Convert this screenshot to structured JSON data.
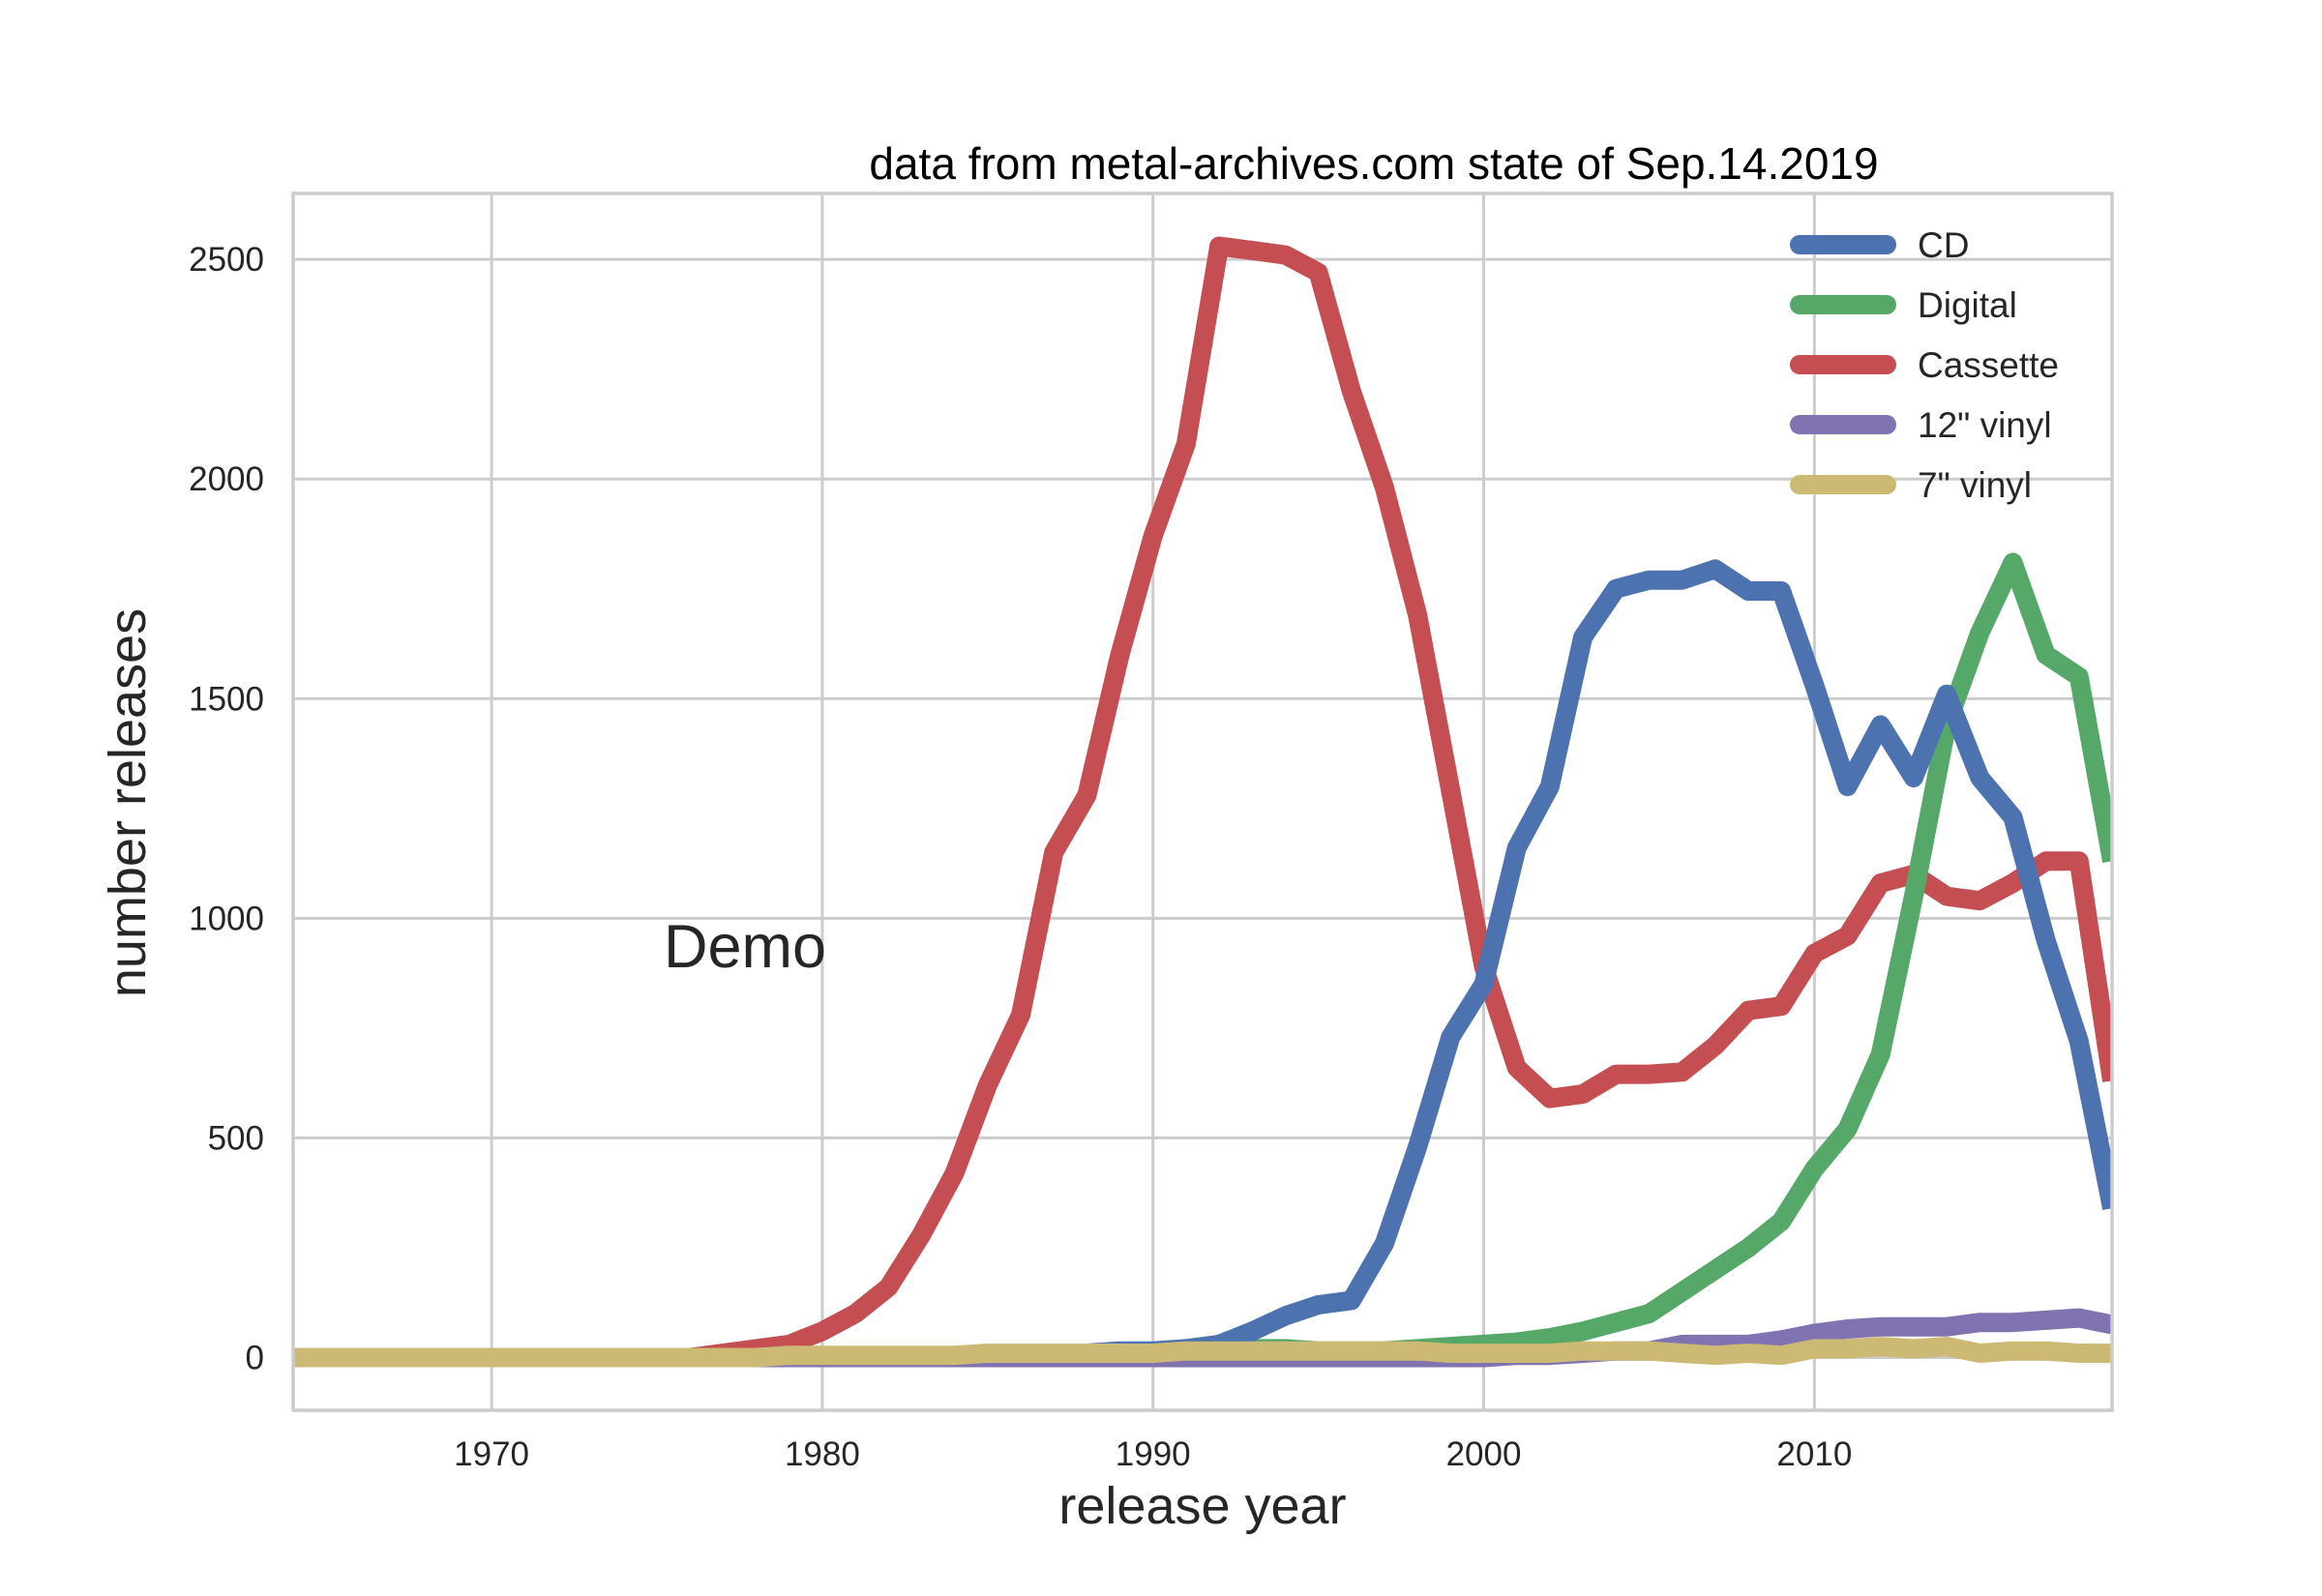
{
  "chart_data": {
    "type": "line",
    "title": "data from metal-archives.com state of Sep.14.2019",
    "xlabel": "release year",
    "ylabel": "number releases",
    "annotation": "Demo",
    "xlim": [
      1964,
      2019
    ],
    "ylim": [
      -120,
      2650
    ],
    "x_ticks": [
      1970,
      1980,
      1990,
      2000,
      2010
    ],
    "y_ticks": [
      0,
      500,
      1000,
      1500,
      2000,
      2500
    ],
    "grid": true,
    "legend_position": "top-right",
    "x": [
      1964,
      1965,
      1966,
      1967,
      1968,
      1969,
      1970,
      1971,
      1972,
      1973,
      1974,
      1975,
      1976,
      1977,
      1978,
      1979,
      1980,
      1981,
      1982,
      1983,
      1984,
      1985,
      1986,
      1987,
      1988,
      1989,
      1990,
      1991,
      1992,
      1993,
      1994,
      1995,
      1996,
      1997,
      1998,
      1999,
      2000,
      2001,
      2002,
      2003,
      2004,
      2005,
      2006,
      2007,
      2008,
      2009,
      2010,
      2011,
      2012,
      2013,
      2014,
      2015,
      2016,
      2017,
      2018,
      2019
    ],
    "series": [
      {
        "name": "CD",
        "color": "#4c72b0",
        "values": [
          0,
          0,
          0,
          0,
          0,
          0,
          0,
          0,
          0,
          0,
          0,
          0,
          0,
          0,
          0,
          0,
          0,
          0,
          0,
          0,
          0,
          5,
          5,
          10,
          10,
          15,
          15,
          20,
          30,
          60,
          95,
          120,
          130,
          260,
          480,
          730,
          850,
          1160,
          1300,
          1640,
          1750,
          1770,
          1770,
          1795,
          1745,
          1745,
          1530,
          1300,
          1440,
          1320,
          1510,
          1320,
          1230,
          950,
          720,
          340
        ]
      },
      {
        "name": "Digital",
        "color": "#55a868",
        "values": [
          0,
          0,
          0,
          0,
          0,
          0,
          0,
          0,
          0,
          0,
          0,
          0,
          0,
          0,
          0,
          0,
          0,
          0,
          0,
          0,
          0,
          0,
          0,
          0,
          0,
          5,
          10,
          15,
          20,
          20,
          20,
          15,
          15,
          15,
          20,
          25,
          30,
          35,
          45,
          60,
          80,
          100,
          150,
          200,
          250,
          310,
          430,
          520,
          690,
          1050,
          1440,
          1650,
          1810,
          1600,
          1550,
          1130
        ]
      },
      {
        "name": "Cassette",
        "color": "#c44e52",
        "values": [
          0,
          0,
          0,
          0,
          0,
          0,
          0,
          0,
          0,
          0,
          0,
          0,
          0,
          10,
          20,
          30,
          60,
          100,
          160,
          280,
          420,
          620,
          780,
          1150,
          1280,
          1600,
          1870,
          2080,
          2530,
          2520,
          2510,
          2470,
          2200,
          1980,
          1690,
          1290,
          890,
          660,
          590,
          600,
          645,
          645,
          650,
          710,
          790,
          800,
          920,
          960,
          1080,
          1100,
          1050,
          1040,
          1080,
          1130,
          1130,
          630
        ]
      },
      {
        "name": "12\" vinyl",
        "color": "#8172b2",
        "values": [
          0,
          0,
          0,
          0,
          0,
          0,
          0,
          0,
          0,
          0,
          0,
          0,
          0,
          0,
          0,
          0,
          0,
          0,
          0,
          0,
          0,
          0,
          0,
          0,
          0,
          0,
          0,
          0,
          0,
          0,
          0,
          0,
          0,
          0,
          0,
          0,
          0,
          5,
          5,
          10,
          15,
          15,
          30,
          30,
          30,
          40,
          55,
          65,
          70,
          70,
          70,
          80,
          80,
          85,
          90,
          75
        ]
      },
      {
        "name": "7\" vinyl",
        "color": "#ccb974",
        "values": [
          0,
          0,
          0,
          0,
          0,
          0,
          0,
          0,
          0,
          0,
          0,
          0,
          0,
          0,
          0,
          5,
          5,
          5,
          5,
          5,
          5,
          10,
          10,
          10,
          10,
          10,
          10,
          15,
          15,
          15,
          15,
          15,
          15,
          15,
          15,
          10,
          10,
          10,
          10,
          15,
          15,
          15,
          10,
          5,
          10,
          5,
          20,
          20,
          25,
          20,
          25,
          10,
          15,
          15,
          10,
          10
        ]
      }
    ]
  }
}
